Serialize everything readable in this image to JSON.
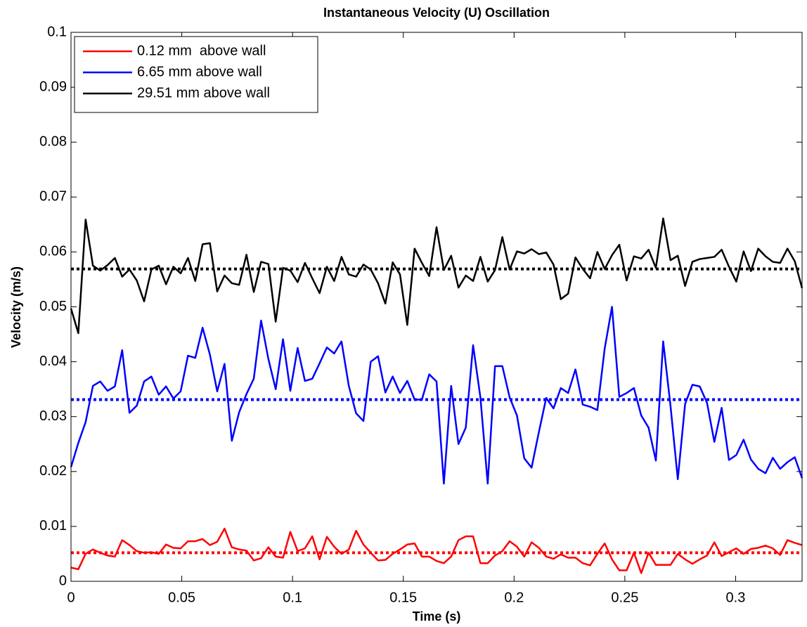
{
  "chart_data": {
    "type": "line",
    "title": "Instantaneous Velocity (U) Oscillation",
    "x_label": "Time (s)",
    "y_label": "Velocity (m/s)",
    "x": [
      0,
      0.0033,
      0.0066,
      0.0099,
      0.0132,
      0.0165,
      0.0198,
      0.0231,
      0.0264,
      0.0297,
      0.033,
      0.0363,
      0.0396,
      0.0429,
      0.0462,
      0.0495,
      0.0528,
      0.0561,
      0.0594,
      0.0627,
      0.066,
      0.0693,
      0.0726,
      0.0759,
      0.0792,
      0.0825,
      0.0858,
      0.0891,
      0.0924,
      0.0957,
      0.099,
      0.1023,
      0.1056,
      0.1089,
      0.1122,
      0.1155,
      0.1188,
      0.1221,
      0.1254,
      0.1287,
      0.132,
      0.1353,
      0.1386,
      0.1419,
      0.1452,
      0.1485,
      0.1518,
      0.1551,
      0.1584,
      0.1617,
      0.165,
      0.1683,
      0.1716,
      0.1749,
      0.1782,
      0.1815,
      0.1848,
      0.1881,
      0.1914,
      0.1947,
      0.198,
      0.2013,
      0.2046,
      0.2079,
      0.2112,
      0.2145,
      0.2178,
      0.2211,
      0.2244,
      0.2277,
      0.231,
      0.2343,
      0.2376,
      0.2409,
      0.2442,
      0.2475,
      0.2508,
      0.2541,
      0.2574,
      0.2607,
      0.264,
      0.2673,
      0.2706,
      0.2739,
      0.2772,
      0.2805,
      0.2838,
      0.2871,
      0.2904,
      0.2937,
      0.297,
      0.3003,
      0.3036,
      0.3069,
      0.3102,
      0.3135,
      0.3168,
      0.3201,
      0.3234,
      0.3267,
      0.33
    ],
    "series": [
      {
        "name": "0.12 mm  above wall",
        "color": "#ff0000",
        "values": [
          0.0025,
          0.0022,
          0.005,
          0.0058,
          0.0052,
          0.0047,
          0.0045,
          0.0075,
          0.0066,
          0.0055,
          0.0052,
          0.0053,
          0.005,
          0.0067,
          0.0061,
          0.006,
          0.0073,
          0.0073,
          0.0077,
          0.0066,
          0.0072,
          0.0096,
          0.0062,
          0.0058,
          0.0056,
          0.0038,
          0.0042,
          0.0062,
          0.0045,
          0.0043,
          0.009,
          0.0055,
          0.006,
          0.0082,
          0.004,
          0.0081,
          0.0063,
          0.005,
          0.0058,
          0.0092,
          0.0067,
          0.0052,
          0.0038,
          0.0039,
          0.005,
          0.0058,
          0.0067,
          0.0069,
          0.0045,
          0.0045,
          0.0037,
          0.0033,
          0.0045,
          0.0075,
          0.0082,
          0.0082,
          0.0033,
          0.0033,
          0.0047,
          0.0055,
          0.0073,
          0.0063,
          0.0045,
          0.0071,
          0.0061,
          0.0045,
          0.0041,
          0.0049,
          0.0043,
          0.0043,
          0.0033,
          0.0029,
          0.005,
          0.0069,
          0.004,
          0.002,
          0.002,
          0.0052,
          0.0015,
          0.0052,
          0.003,
          0.003,
          0.003,
          0.005,
          0.004,
          0.0032,
          0.004,
          0.0047,
          0.0071,
          0.0046,
          0.0053,
          0.006,
          0.005,
          0.0059,
          0.0061,
          0.0065,
          0.006,
          0.0048,
          0.0075,
          0.007,
          0.0066
        ]
      },
      {
        "name": "6.65 mm above wall",
        "color": "#0000ff",
        "values": [
          0.0208,
          0.0252,
          0.029,
          0.0356,
          0.0364,
          0.0347,
          0.0355,
          0.0421,
          0.0307,
          0.032,
          0.0364,
          0.0373,
          0.034,
          0.0355,
          0.0333,
          0.0346,
          0.0411,
          0.0407,
          0.0462,
          0.0413,
          0.0346,
          0.0396,
          0.0256,
          0.0308,
          0.0341,
          0.0369,
          0.0475,
          0.0405,
          0.035,
          0.0441,
          0.0347,
          0.0425,
          0.0365,
          0.0369,
          0.0397,
          0.0426,
          0.0415,
          0.0437,
          0.0356,
          0.0306,
          0.0292,
          0.04,
          0.041,
          0.0344,
          0.0373,
          0.0343,
          0.0365,
          0.0331,
          0.0331,
          0.0377,
          0.0364,
          0.0178,
          0.0356,
          0.025,
          0.028,
          0.043,
          0.0335,
          0.0178,
          0.0392,
          0.0392,
          0.0335,
          0.0302,
          0.0224,
          0.0207,
          0.0272,
          0.0334,
          0.0315,
          0.0352,
          0.0343,
          0.0386,
          0.0322,
          0.0318,
          0.0312,
          0.0424,
          0.05,
          0.0336,
          0.0343,
          0.0352,
          0.0302,
          0.028,
          0.022,
          0.0437,
          0.032,
          0.0186,
          0.0323,
          0.0358,
          0.0355,
          0.0325,
          0.0254,
          0.0316,
          0.0221,
          0.023,
          0.0258,
          0.0222,
          0.0205,
          0.0197,
          0.0225,
          0.0205,
          0.0217,
          0.0226,
          0.0188
        ]
      },
      {
        "name": "29.51 mm above wall",
        "color": "#000000",
        "values": [
          0.0497,
          0.0452,
          0.0659,
          0.0575,
          0.0566,
          0.0576,
          0.0589,
          0.0555,
          0.0568,
          0.0548,
          0.051,
          0.0568,
          0.0575,
          0.0541,
          0.0573,
          0.0561,
          0.0589,
          0.0547,
          0.0614,
          0.0616,
          0.0528,
          0.0557,
          0.0543,
          0.054,
          0.0595,
          0.0527,
          0.0582,
          0.0578,
          0.0473,
          0.0571,
          0.0566,
          0.0545,
          0.058,
          0.0552,
          0.0525,
          0.0573,
          0.0547,
          0.0591,
          0.0559,
          0.0555,
          0.0577,
          0.0568,
          0.0543,
          0.0506,
          0.0581,
          0.0559,
          0.0467,
          0.0606,
          0.058,
          0.0556,
          0.0645,
          0.0567,
          0.0593,
          0.0535,
          0.0557,
          0.0547,
          0.0591,
          0.0546,
          0.0567,
          0.0627,
          0.0568,
          0.0601,
          0.0597,
          0.0605,
          0.0596,
          0.0599,
          0.0577,
          0.0514,
          0.0524,
          0.059,
          0.0569,
          0.0552,
          0.06,
          0.0569,
          0.0594,
          0.0613,
          0.0548,
          0.0592,
          0.0588,
          0.0604,
          0.0571,
          0.0661,
          0.0585,
          0.0593,
          0.0538,
          0.0582,
          0.0587,
          0.0589,
          0.0591,
          0.0604,
          0.0573,
          0.0546,
          0.0601,
          0.0565,
          0.0606,
          0.0592,
          0.0582,
          0.058,
          0.0606,
          0.0583,
          0.0534
        ]
      }
    ],
    "mean_lines": [
      {
        "value": 0.0052,
        "color": "#ff0000"
      },
      {
        "value": 0.0331,
        "color": "#0000ff"
      },
      {
        "value": 0.0569,
        "color": "#000000"
      }
    ],
    "xlim": [
      0,
      0.33
    ],
    "ylim": [
      0,
      0.1
    ],
    "xticks": [
      0,
      0.05,
      0.1,
      0.15,
      0.2,
      0.25,
      0.3
    ],
    "yticks": [
      0,
      0.01,
      0.02,
      0.03,
      0.04,
      0.05,
      0.06,
      0.07,
      0.08,
      0.09,
      0.1
    ],
    "legend": "upper-left",
    "grid": false
  }
}
